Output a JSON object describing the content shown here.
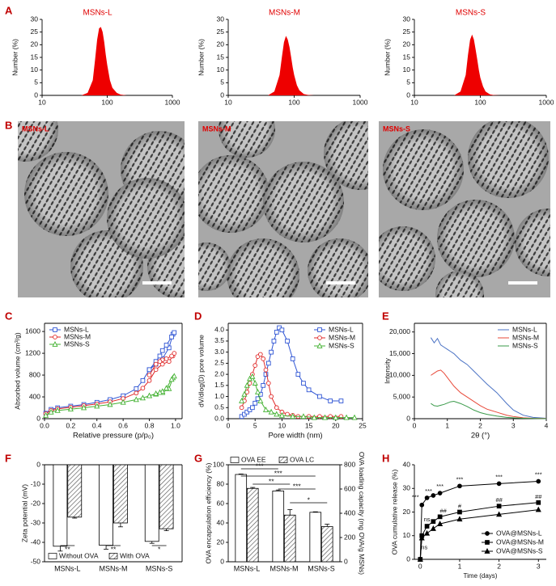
{
  "panels": [
    "A",
    "B",
    "C",
    "D",
    "E",
    "F",
    "G",
    "H"
  ],
  "micrographs": [
    {
      "label": "MSNs-L"
    },
    {
      "label": "MSNs-M"
    },
    {
      "label": "MSNs-S"
    }
  ],
  "chart_data": [
    {
      "type": "area",
      "title": "MSNs-L",
      "ylabel": "Number (%)",
      "color": "#ee0000",
      "xlog": true,
      "xlim": [
        10,
        1000
      ],
      "xticks": [
        10,
        100,
        1000
      ],
      "ylim": [
        0,
        30
      ],
      "yticks": [
        0,
        5,
        10,
        15,
        20,
        25,
        30
      ],
      "x": [
        40,
        50,
        60,
        65,
        70,
        75,
        80,
        85,
        90,
        95,
        100,
        110,
        120,
        140,
        160,
        200
      ],
      "values": [
        0,
        1,
        6,
        14,
        22,
        26.5,
        27,
        25,
        21,
        16,
        12,
        6,
        3,
        1,
        0.3,
        0
      ]
    },
    {
      "type": "area",
      "title": "MSNs-M",
      "ylabel": "Number (%)",
      "color": "#ee0000",
      "xlog": true,
      "xlim": [
        10,
        1000
      ],
      "xticks": [
        10,
        100,
        1000
      ],
      "ylim": [
        0,
        30
      ],
      "yticks": [
        0,
        5,
        10,
        15,
        20,
        25,
        30
      ],
      "x": [
        40,
        50,
        60,
        65,
        70,
        75,
        80,
        85,
        90,
        95,
        100,
        110,
        120,
        140,
        160,
        200
      ],
      "values": [
        0,
        1.5,
        8,
        15,
        21,
        23.5,
        22,
        19,
        15,
        11,
        8,
        4,
        2,
        0.5,
        0.2,
        0
      ]
    },
    {
      "type": "area",
      "title": "MSNs-S",
      "ylabel": "Number (%)",
      "color": "#ee0000",
      "xlog": true,
      "xlim": [
        10,
        1000
      ],
      "xticks": [
        10,
        100,
        1000
      ],
      "ylim": [
        0,
        30
      ],
      "yticks": [
        0,
        5,
        10,
        15,
        20,
        25,
        30
      ],
      "x": [
        40,
        50,
        60,
        65,
        70,
        75,
        80,
        85,
        90,
        95,
        100,
        110,
        120,
        140,
        160,
        200
      ],
      "values": [
        0,
        1.5,
        8,
        16,
        22,
        24,
        22,
        18,
        14,
        10,
        7,
        3.5,
        1.5,
        0.4,
        0.1,
        0
      ]
    },
    {
      "type": "line",
      "xlabel": "Relative pressure (p/p₀)",
      "ylabel": "Absorbed volume (cm³/g)",
      "xlim": [
        0,
        1.05
      ],
      "xticks": [
        {
          "value": 0,
          "label": "0.0"
        },
        0.2,
        0.4,
        0.6,
        0.8,
        {
          "value": 1,
          "label": "1.0"
        }
      ],
      "ylim": [
        0,
        1750
      ],
      "yticks": [
        0,
        400,
        800,
        1200,
        1600
      ],
      "legend": "top-left",
      "marker_fill": "open",
      "series": [
        {
          "name": "MSNs-L",
          "color": "#2f55d4",
          "marker": "square",
          "x": [
            0.01,
            0.05,
            0.1,
            0.2,
            0.3,
            0.4,
            0.5,
            0.6,
            0.7,
            0.75,
            0.8,
            0.85,
            0.9,
            0.95,
            0.98,
            0.99,
            0.97,
            0.93,
            0.9,
            0.88,
            0.85,
            0.8
          ],
          "values": [
            100,
            170,
            200,
            230,
            260,
            300,
            350,
            420,
            550,
            700,
            900,
            1000,
            1100,
            1300,
            1550,
            1580,
            1500,
            1350,
            1250,
            1150,
            1050,
            900
          ]
        },
        {
          "name": "MSNs-M",
          "color": "#e02a2a",
          "marker": "circle",
          "x": [
            0.01,
            0.05,
            0.1,
            0.2,
            0.3,
            0.4,
            0.5,
            0.6,
            0.7,
            0.75,
            0.8,
            0.85,
            0.9,
            0.95,
            0.98,
            0.99,
            0.97,
            0.93,
            0.9,
            0.88,
            0.85,
            0.8
          ],
          "values": [
            90,
            150,
            180,
            210,
            240,
            270,
            310,
            370,
            470,
            560,
            700,
            900,
            1000,
            1050,
            1150,
            1200,
            1150,
            1100,
            1080,
            1050,
            1000,
            800
          ]
        },
        {
          "name": "MSNs-S",
          "color": "#44b233",
          "marker": "triangle",
          "x": [
            0.01,
            0.05,
            0.1,
            0.2,
            0.3,
            0.4,
            0.5,
            0.6,
            0.7,
            0.75,
            0.8,
            0.85,
            0.9,
            0.95,
            0.98,
            0.99,
            0.97,
            0.93,
            0.9,
            0.88,
            0.85,
            0.8
          ],
          "values": [
            60,
            120,
            150,
            175,
            200,
            230,
            260,
            300,
            350,
            380,
            420,
            450,
            480,
            550,
            750,
            780,
            720,
            560,
            500,
            480,
            460,
            420
          ]
        }
      ]
    },
    {
      "type": "line",
      "xlabel": "Pore width (nm)",
      "ylabel": "dV/dlog(D) pore volume",
      "xlim": [
        0,
        25
      ],
      "xticks": [
        0,
        5,
        10,
        15,
        20,
        25
      ],
      "ylim": [
        0,
        4.3
      ],
      "yticks": [
        {
          "value": 0,
          "label": "0.0"
        },
        0.5,
        {
          "value": 1,
          "label": "1.0"
        },
        1.5,
        {
          "value": 2,
          "label": "2.0"
        },
        2.5,
        {
          "value": 3,
          "label": "3.0"
        },
        3.5,
        {
          "value": 4,
          "label": "4.0"
        }
      ],
      "legend": "top-right",
      "marker_fill": "open",
      "series": [
        {
          "name": "MSNs-L",
          "color": "#2f55d4",
          "marker": "square",
          "x": [
            2.5,
            3,
            3.5,
            4,
            4.5,
            5,
            5.5,
            6,
            6.5,
            7,
            7.5,
            8,
            8.5,
            9,
            9.5,
            10,
            11,
            12,
            13,
            14,
            15,
            17,
            19,
            21
          ],
          "values": [
            0.1,
            0.2,
            0.3,
            0.4,
            0.5,
            0.7,
            0.9,
            1.1,
            1.5,
            2,
            2.5,
            3,
            3.5,
            3.9,
            4.1,
            4,
            3.5,
            2.7,
            2,
            1.6,
            1.3,
            1,
            0.8,
            0.8
          ]
        },
        {
          "name": "MSNs-M",
          "color": "#e02a2a",
          "marker": "circle",
          "x": [
            2.5,
            3,
            3.5,
            4,
            4.5,
            5,
            5.5,
            6,
            6.5,
            7,
            7.5,
            8,
            9,
            10,
            11,
            12,
            13,
            15,
            17,
            19,
            21
          ],
          "values": [
            0.5,
            0.8,
            1.2,
            1.6,
            2,
            2.4,
            2.8,
            2.9,
            2.7,
            2.2,
            1.6,
            1,
            0.5,
            0.3,
            0.2,
            0.15,
            0.1,
            0.1,
            0.1,
            0.1,
            0.1
          ]
        },
        {
          "name": "MSNs-S",
          "color": "#44b233",
          "marker": "triangle",
          "x": [
            2.5,
            3,
            3.5,
            4,
            4.5,
            5,
            5.5,
            6,
            7,
            8,
            9,
            10,
            12,
            14,
            16,
            18,
            20,
            22,
            23.5
          ],
          "values": [
            0.8,
            1.1,
            1.5,
            1.8,
            1.9,
            1.6,
            1.2,
            0.8,
            0.4,
            0.3,
            0.2,
            0.15,
            0.1,
            0.1,
            0.05,
            0.05,
            0.05,
            0.05,
            0.05
          ]
        }
      ]
    },
    {
      "type": "line",
      "xlabel": "2θ (°)",
      "ylabel": "Intensity",
      "xlim": [
        0,
        4
      ],
      "xticks": [
        0,
        1,
        2,
        3,
        4
      ],
      "ylim": [
        0,
        22000
      ],
      "yticks": [
        0,
        {
          "value": 5000,
          "label": "5,000"
        },
        {
          "value": 10000,
          "label": "10,000"
        },
        {
          "value": 15000,
          "label": "15,000"
        },
        {
          "value": 20000,
          "label": "20,000"
        }
      ],
      "legend": "top-right",
      "series": [
        {
          "name": "MSNs-L",
          "color": "#4a72c4",
          "x": [
            0.5,
            0.6,
            0.7,
            0.8,
            0.9,
            1,
            1.1,
            1.2,
            1.4,
            1.6,
            1.8,
            2,
            2.2,
            2.5,
            2.8,
            3,
            3.3,
            3.6,
            4
          ],
          "values": [
            18700,
            17500,
            18500,
            17000,
            16500,
            16000,
            15500,
            15000,
            13500,
            12500,
            11000,
            9500,
            8000,
            6000,
            3500,
            2000,
            800,
            300,
            100
          ]
        },
        {
          "name": "MSNs-M",
          "color": "#e84a3a",
          "x": [
            0.5,
            0.6,
            0.7,
            0.8,
            0.9,
            1,
            1.1,
            1.2,
            1.4,
            1.6,
            1.8,
            2,
            2.2,
            2.5,
            2.8,
            3,
            3.3,
            3.6,
            4
          ],
          "values": [
            10000,
            10500,
            11000,
            11200,
            10500,
            9500,
            8500,
            7500,
            6000,
            5000,
            4000,
            3000,
            2200,
            1500,
            800,
            500,
            200,
            100,
            50
          ]
        },
        {
          "name": "MSNs-S",
          "color": "#3a9a4a",
          "x": [
            0.5,
            0.6,
            0.7,
            0.8,
            0.9,
            1,
            1.1,
            1.2,
            1.4,
            1.6,
            1.8,
            2,
            2.2,
            2.5,
            2.8,
            3,
            3.3,
            3.6,
            4
          ],
          "values": [
            3500,
            3000,
            2900,
            3100,
            3300,
            3600,
            3900,
            4000,
            3500,
            2800,
            2000,
            1400,
            1000,
            600,
            300,
            200,
            100,
            50,
            0
          ]
        }
      ]
    },
    {
      "type": "bar",
      "ylabel": "Zeta potential (mV)",
      "categories": [
        "MSNs-L",
        "MSNs-M",
        "MSNs-S"
      ],
      "ylim": [
        -50,
        0
      ],
      "yticks": [
        0,
        -10,
        -20,
        -30,
        -40,
        -50
      ],
      "legend": "bottom",
      "series": [
        {
          "name": "Without OVA",
          "color": "#ffffff",
          "values": [
            -42,
            -41.5,
            -39.5
          ],
          "errors": [
            2.5,
            2,
            1
          ]
        },
        {
          "name": "With OVA",
          "color": "#555555",
          "hatch": true,
          "values": [
            -27,
            -30,
            -33
          ],
          "errors": [
            0.5,
            2,
            1
          ]
        }
      ],
      "annotations": [
        "**",
        "**",
        "*"
      ]
    },
    {
      "type": "bar",
      "ylabel": "OVA encapsulation efficiency (%)",
      "y2label": "OVA loading capacity (mg OVA/g MSNs)",
      "categories": [
        "MSNs-L",
        "MSNs-M",
        "MSNs-S"
      ],
      "ylim": [
        0,
        100
      ],
      "yticks": [
        0,
        20,
        40,
        60,
        80,
        100
      ],
      "y2lim": [
        0,
        800
      ],
      "y2ticks": [
        0,
        200,
        400,
        600,
        800
      ],
      "legend": "top",
      "series": [
        {
          "name": "OVA EE",
          "color": "#ffffff",
          "values": [
            90,
            73,
            51
          ],
          "errors": [
            0.5,
            1,
            0.5
          ]
        },
        {
          "name": "OVA LC",
          "color": "#555555",
          "hatch": true,
          "axis": "y2",
          "values": [
            605,
            385,
            290
          ],
          "errors": [
            8,
            45,
            20
          ]
        }
      ],
      "annotations": [
        "***",
        "***",
        "**",
        "***",
        "*"
      ]
    },
    {
      "type": "line",
      "xlabel": "Time (days)",
      "ylabel": "OVA cumulative release (%)",
      "xlim": [
        -0.15,
        3.2
      ],
      "xticks": [
        0,
        1,
        2,
        3
      ],
      "ylim": [
        0,
        40
      ],
      "yticks": [
        0,
        10,
        20,
        30,
        40
      ],
      "legend": "bottom-right",
      "marker_fill": "filled",
      "series": [
        {
          "name": "OVA@MSNs-L",
          "color": "#000000",
          "marker": "circle",
          "x": [
            0,
            0.04,
            0.17,
            0.33,
            0.5,
            1,
            2,
            3
          ],
          "values": [
            0,
            23,
            26,
            27,
            28,
            31,
            32,
            33
          ]
        },
        {
          "name": "OVA@MSNs-M",
          "color": "#000000",
          "marker": "square",
          "x": [
            0,
            0.04,
            0.17,
            0.33,
            0.5,
            1,
            2,
            3
          ],
          "values": [
            0,
            10,
            14,
            16,
            18,
            20,
            22.5,
            24
          ]
        },
        {
          "name": "OVA@MSNs-S",
          "color": "#000000",
          "marker": "triangle",
          "x": [
            0,
            0.04,
            0.17,
            0.33,
            0.5,
            1,
            2,
            3
          ],
          "values": [
            0,
            9,
            11,
            13,
            15,
            17,
            19,
            21
          ]
        }
      ],
      "annotations": [
        "***",
        "***",
        "***",
        "***",
        "***",
        "***",
        "ns",
        "ns",
        "##",
        "#",
        "##",
        "##"
      ]
    }
  ]
}
